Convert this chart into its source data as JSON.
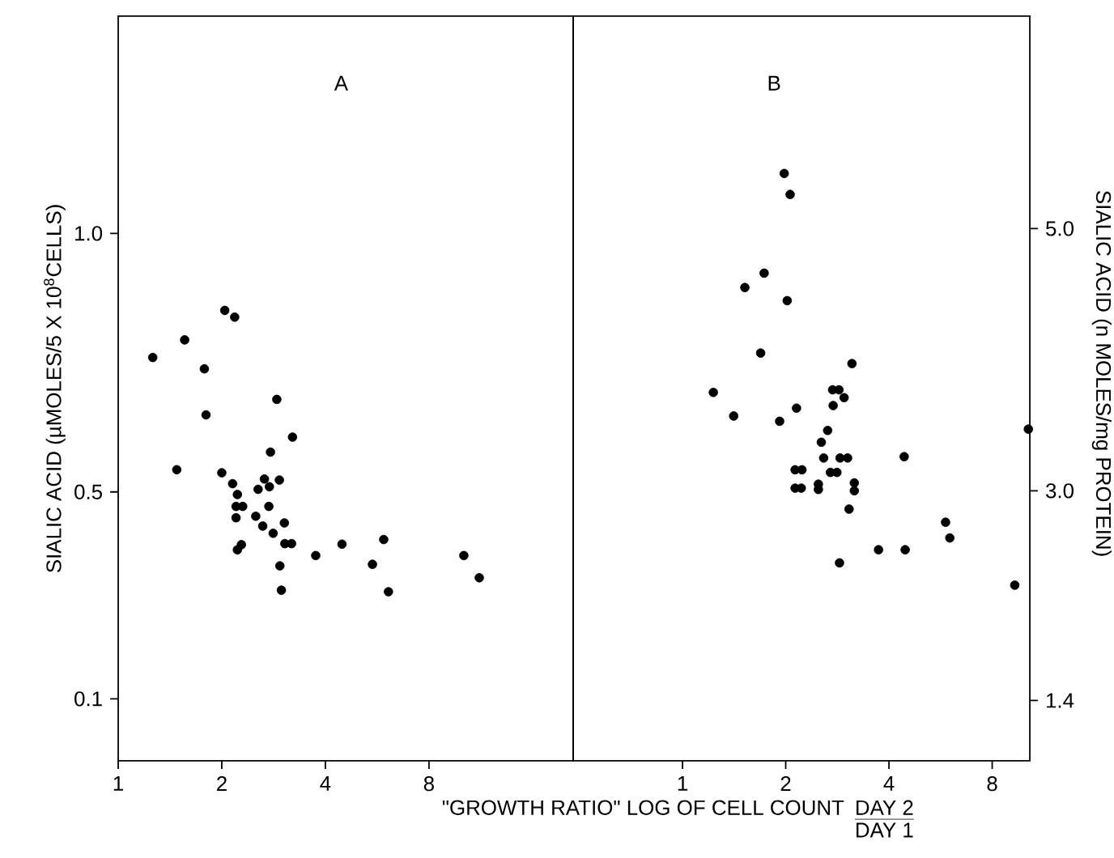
{
  "chart_data": [
    {
      "type": "scatter",
      "title": "A",
      "ylabel": "SIALIC ACID (µMOLES/5 X 10$^{8}$CELLS)",
      "xlabel": "\"GROWTH RATIO\"  LOG OF CELL COUNT",
      "annotations": [
        "DAY 2",
        "DAY 1"
      ],
      "log": "x",
      "xlim": [
        1,
        21
      ],
      "xticks": [
        1,
        2,
        4,
        8
      ],
      "ylim": [
        -0.02,
        1.42
      ],
      "yticks": [
        0.1,
        0.5,
        {
          "value": 1,
          "label": "1.0"
        }
      ],
      "grid": false,
      "legend": false,
      "marker": "circle",
      "series": [
        {
          "color": "#000000",
          "x": [
            2.04,
            2.18,
            1.56,
            1.26,
            1.78,
            2.89,
            1.8,
            3.21,
            2.77,
            1.48,
            2.0,
            2.15,
            2.66,
            2.94,
            2.55,
            2.75,
            2.22,
            2.2,
            2.3,
            2.74,
            2.2,
            2.51,
            2.63,
            3.04,
            2.82,
            2.22,
            2.28,
            3.05,
            3.19,
            3.75,
            4.47,
            5.91,
            2.95,
            5.48,
            2.98,
            6.1,
            10.1,
            11.2
          ],
          "values": [
            0.851,
            0.838,
            0.794,
            0.76,
            0.738,
            0.679,
            0.649,
            0.606,
            0.577,
            0.543,
            0.537,
            0.516,
            0.525,
            0.523,
            0.505,
            0.51,
            0.495,
            0.472,
            0.472,
            0.472,
            0.45,
            0.453,
            0.434,
            0.44,
            0.42,
            0.388,
            0.398,
            0.4,
            0.4,
            0.377,
            0.399,
            0.408,
            0.357,
            0.36,
            0.31,
            0.307,
            0.377,
            0.334
          ]
        }
      ]
    },
    {
      "type": "scatter",
      "title": "B",
      "ylabel": "SIALIC ACID  (n MOLES/mg PROTEIN)",
      "log": "x",
      "xlim": [
        0.48,
        10.3
      ],
      "xticks": [
        1,
        2,
        4,
        8
      ],
      "ylim": [
        0.94,
        6.62
      ],
      "yticks": [
        1.4,
        {
          "value": 3,
          "label": "3.0"
        },
        {
          "value": 5,
          "label": "5.0"
        }
      ],
      "grid": false,
      "legend": false,
      "marker": "circle",
      "series": [
        {
          "color": "#000000",
          "x": [
            1.98,
            2.06,
            1.73,
            1.52,
            2.02,
            1.69,
            3.12,
            1.23,
            2.74,
            2.86,
            2.96,
            2.75,
            1.41,
            2.15,
            1.92,
            2.65,
            2.54,
            2.58,
            2.88,
            3.03,
            4.43,
            2.13,
            2.23,
            2.7,
            2.82,
            2.13,
            2.22,
            2.49,
            2.49,
            3.17,
            3.17,
            3.06,
            5.85,
            6.02,
            3.73,
            4.46,
            2.87,
            9.31,
            10.2
          ],
          "values": [
            5.42,
            5.26,
            4.66,
            4.55,
            4.45,
            4.05,
            3.97,
            3.75,
            3.77,
            3.77,
            3.71,
            3.65,
            3.57,
            3.63,
            3.53,
            3.46,
            3.37,
            3.25,
            3.25,
            3.25,
            3.26,
            3.16,
            3.16,
            3.14,
            3.14,
            3.02,
            3.02,
            3.05,
            3.01,
            3.06,
            3.0,
            2.86,
            2.76,
            2.64,
            2.55,
            2.55,
            2.45,
            2.28,
            3.47
          ]
        }
      ]
    }
  ]
}
